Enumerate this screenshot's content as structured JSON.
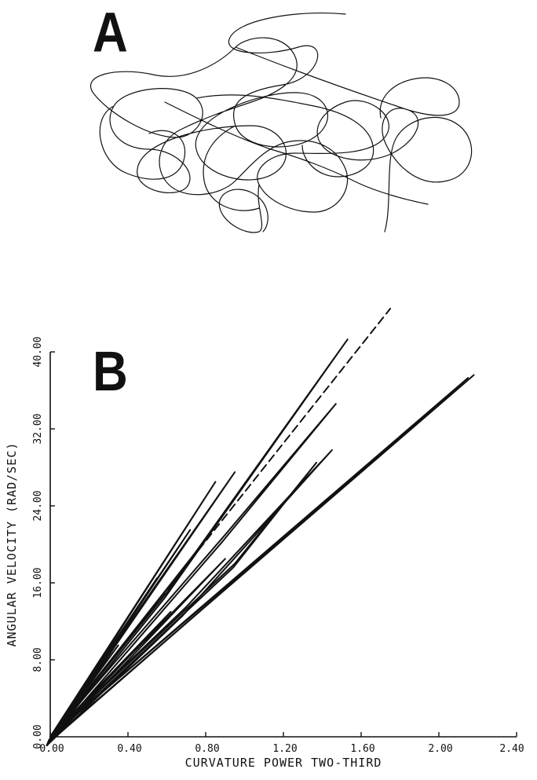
{
  "panels": {
    "a_label": "A",
    "b_label": "B"
  },
  "chart_data": [
    {
      "type": "line",
      "panel": "A",
      "title": "",
      "xlabel": "",
      "ylabel": "",
      "grid": false
    },
    {
      "type": "line",
      "panel": "B",
      "title": "",
      "xlabel": "CURVATURE POWER TWO-THIRD",
      "ylabel": "ANGULAR VELOCITY (RAD/SEC)",
      "xlim": [
        0,
        2.4
      ],
      "ylim": [
        0,
        40
      ],
      "x_ticks": [
        "0.00",
        "0.40",
        "0.80",
        "1.20",
        "1.60",
        "2.00",
        "2.40"
      ],
      "y_ticks": [
        "0.00",
        "8.00",
        "16.00",
        "24.00",
        "32.00",
        "40.00"
      ],
      "grid": false,
      "series": [
        {
          "style": "dashed",
          "x": [
            0,
            1.75
          ],
          "y": [
            0,
            44.5
          ]
        },
        {
          "style": "solid",
          "x": [
            0,
            0.6,
            1.53
          ],
          "y": [
            0,
            15,
            41.3
          ]
        },
        {
          "style": "solid",
          "x": [
            0,
            0.9,
            1.47
          ],
          "y": [
            0,
            21,
            34.6
          ]
        },
        {
          "style": "solid",
          "x": [
            0,
            0.7,
            1.45
          ],
          "y": [
            0,
            13.5,
            29.8
          ]
        },
        {
          "style": "solid",
          "x": [
            0,
            0.95,
            1.37
          ],
          "y": [
            0,
            18,
            28.5
          ]
        },
        {
          "style": "solid",
          "x": [
            0,
            2.18
          ],
          "y": [
            0,
            37.6
          ]
        },
        {
          "style": "solid",
          "x": [
            0,
            2.15
          ],
          "y": [
            0,
            37.3
          ]
        },
        {
          "style": "solid",
          "x": [
            0,
            0.95
          ],
          "y": [
            0,
            27.5
          ]
        },
        {
          "style": "solid",
          "x": [
            0,
            0.85
          ],
          "y": [
            0,
            26.5
          ]
        },
        {
          "style": "solid",
          "x": [
            0,
            0.8
          ],
          "y": [
            0,
            20.5
          ]
        },
        {
          "style": "solid",
          "x": [
            0,
            0.72
          ],
          "y": [
            0,
            21.5
          ]
        },
        {
          "style": "solid",
          "x": [
            0,
            0.9
          ],
          "y": [
            0,
            18.5
          ]
        },
        {
          "style": "solid",
          "x": [
            0,
            0.55
          ],
          "y": [
            0,
            16.5
          ]
        },
        {
          "style": "solid",
          "x": [
            0,
            0.45
          ],
          "y": [
            0,
            14.0
          ]
        },
        {
          "style": "solid",
          "x": [
            0,
            0.62
          ],
          "y": [
            0,
            13.0
          ]
        },
        {
          "style": "solid",
          "x": [
            0,
            0.4
          ],
          "y": [
            0,
            11.5
          ]
        },
        {
          "style": "solid",
          "x": [
            0,
            0.35
          ],
          "y": [
            0,
            9.5
          ]
        },
        {
          "style": "solid",
          "x": [
            0,
            0.25
          ],
          "y": [
            0,
            7.5
          ]
        }
      ]
    }
  ]
}
